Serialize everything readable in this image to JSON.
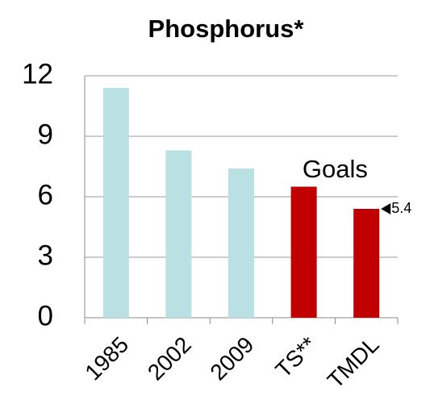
{
  "chart_data": {
    "type": "bar",
    "title": "Phosphorus*",
    "categories": [
      "1985",
      "2002",
      "2009",
      "TS**",
      "TMDL"
    ],
    "values": [
      11.4,
      8.3,
      7.4,
      6.5,
      5.4
    ],
    "colors": [
      "#b9e0e3",
      "#b9e0e3",
      "#b9e0e3",
      "#c00000",
      "#c00000"
    ],
    "ylim": [
      0,
      12
    ],
    "yticks": [
      0,
      3,
      6,
      9,
      12
    ],
    "grid": true,
    "annotation": "Goals",
    "annotation_color": "#ff0000",
    "labeled_bar": 4
  }
}
